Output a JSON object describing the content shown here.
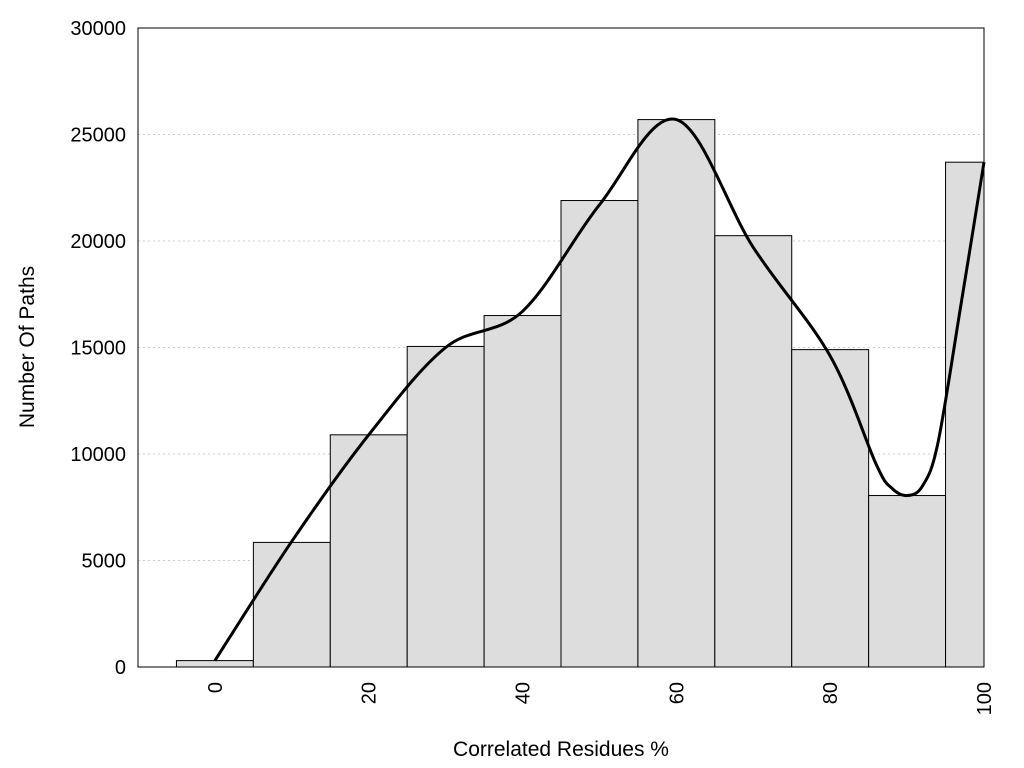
{
  "chart_data": {
    "type": "bar",
    "title": "",
    "xlabel": "Correlated Residues %",
    "ylabel": "Number Of Paths",
    "xlim": [
      -10,
      100
    ],
    "ylim": [
      0,
      30000
    ],
    "grid": {
      "y": true,
      "x": false
    },
    "legend": "none",
    "bin_width": 10,
    "x": [
      0,
      10,
      20,
      30,
      40,
      50,
      60,
      70,
      80,
      90,
      100
    ],
    "values": [
      300,
      5850,
      10900,
      15050,
      16500,
      21900,
      25700,
      20250,
      14900,
      8050,
      23700
    ],
    "x_ticks": [
      "0",
      "20",
      "40",
      "60",
      "80",
      "100"
    ],
    "y_ticks": [
      "0",
      "5000",
      "10000",
      "15000",
      "20000",
      "25000",
      "30000"
    ],
    "curve": {
      "x": [
        0,
        10,
        20,
        30,
        40,
        50,
        60,
        70,
        80,
        86,
        88,
        90,
        92,
        94,
        97,
        100
      ],
      "values": [
        300,
        5900,
        10900,
        15000,
        16700,
        21700,
        25700,
        19700,
        14600,
        9500,
        8400,
        8050,
        8500,
        10500,
        17000,
        23700
      ]
    },
    "colors": {
      "bar_fill": "#dddddd",
      "bar_stroke": "#000000",
      "curve": "#000000",
      "grid": "#cccccc"
    }
  }
}
